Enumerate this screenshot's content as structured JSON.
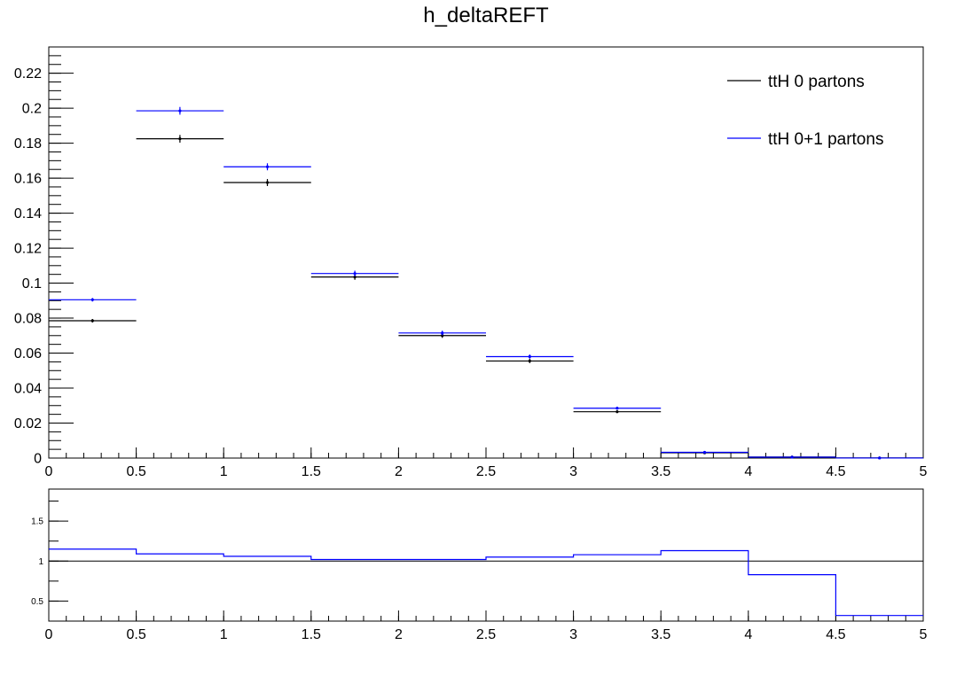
{
  "chart_data": [
    {
      "type": "histogram",
      "title": "h_deltaREFT",
      "xlabel": "",
      "ylabel": "",
      "xlim": [
        0,
        5
      ],
      "ylim": [
        0,
        0.235
      ],
      "bin_edges": [
        0,
        0.5,
        1,
        1.5,
        2,
        2.5,
        3,
        3.5,
        4,
        4.5,
        5
      ],
      "x_ticks": [
        "0",
        "0.5",
        "1",
        "1.5",
        "2",
        "2.5",
        "3",
        "3.5",
        "4",
        "4.5",
        "5"
      ],
      "y_ticks": [
        "0",
        "0.02",
        "0.04",
        "0.06",
        "0.08",
        "0.1",
        "0.12",
        "0.14",
        "0.16",
        "0.18",
        "0.2",
        "0.22"
      ],
      "legend_position": "top-right",
      "series": [
        {
          "name": "ttH 0 partons",
          "color": "#000000",
          "values": [
            0.0785,
            0.1825,
            0.1575,
            0.1035,
            0.07,
            0.0555,
            0.0265,
            0.003,
            0.0006,
            0.0001
          ],
          "errors": [
            0.001,
            0.0022,
            0.002,
            0.0016,
            0.0013,
            0.0012,
            0.0008,
            0.0003,
            0.0001,
            0.0001
          ]
        },
        {
          "name": "ttH 0+1 partons",
          "color": "#0000ff",
          "values": [
            0.0905,
            0.1985,
            0.1665,
            0.1055,
            0.0715,
            0.058,
            0.0285,
            0.0033,
            0.0005,
            3e-05
          ],
          "errors": [
            0.001,
            0.0022,
            0.002,
            0.0016,
            0.0013,
            0.0012,
            0.0008,
            0.0003,
            0.0001,
            0.0001
          ]
        }
      ]
    },
    {
      "type": "histogram",
      "title": "",
      "xlabel": "",
      "ylabel": "",
      "xlim": [
        0,
        5
      ],
      "ylim": [
        0.25,
        1.9
      ],
      "bin_edges": [
        0,
        0.5,
        1,
        1.5,
        2,
        2.5,
        3,
        3.5,
        4,
        4.5,
        5
      ],
      "x_ticks": [
        "0",
        "0.5",
        "1",
        "1.5",
        "2",
        "2.5",
        "3",
        "3.5",
        "4",
        "4.5",
        "5"
      ],
      "y_ticks": [
        "0.5",
        "1",
        "1.5"
      ],
      "reference_line": 1,
      "series": [
        {
          "color": "#0000ff",
          "values": [
            1.15,
            1.09,
            1.06,
            1.02,
            1.02,
            1.05,
            1.08,
            1.13,
            0.83,
            0.32
          ]
        }
      ]
    }
  ]
}
